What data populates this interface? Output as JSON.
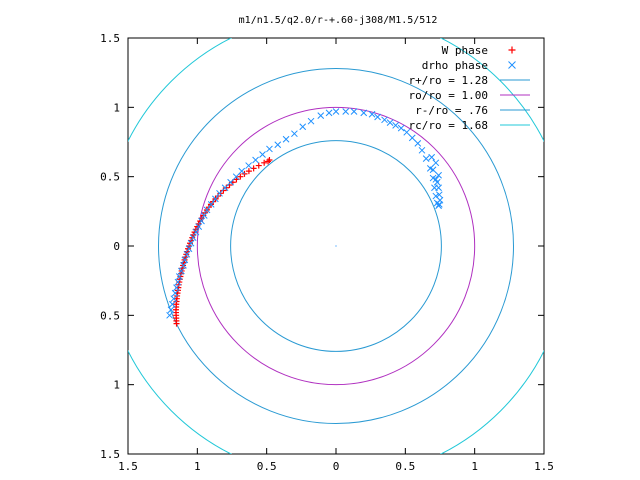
{
  "chart_data": {
    "type": "scatter",
    "title": "m1/n1.5/q2.0/r-+.60-j308/M1.5/512",
    "xlim": [
      -1.5,
      1.5
    ],
    "ylim": [
      -1.5,
      1.5
    ],
    "x_ticks": [
      -1.5,
      -1,
      -0.5,
      0,
      0.5,
      1,
      1.5
    ],
    "y_ticks": [
      -1.5,
      -1,
      -0.5,
      0,
      0.5,
      1,
      1.5
    ],
    "x_tick_labels": [
      "1.5",
      "1",
      "0.5",
      "0",
      "0.5",
      "1",
      "1.5"
    ],
    "y_tick_labels": [
      "1.5",
      "1",
      "0.5",
      "0",
      "0.5",
      "1",
      "1.5"
    ],
    "grid": false,
    "legend_position": "top-right",
    "legend": [
      {
        "label": "W phase",
        "kind": "marker",
        "marker": "plus",
        "color": "#ff0000"
      },
      {
        "label": "drho phase",
        "kind": "marker",
        "marker": "cross",
        "color": "#1e90ff"
      },
      {
        "label": "r+/ro = 1.28",
        "kind": "line",
        "color": "#2a9ad3"
      },
      {
        "label": "ro/ro = 1.00",
        "kind": "line",
        "color": "#b030c0"
      },
      {
        "label": "r-/ro = .76",
        "kind": "line",
        "color": "#2a9ad3"
      },
      {
        "label": "rc/ro = 1.68",
        "kind": "line",
        "color": "#22c8d8"
      }
    ],
    "circles": [
      {
        "name": "r+/ro = 1.28",
        "radius": 1.28,
        "color": "#2a9ad3"
      },
      {
        "name": "ro/ro = 1.00",
        "radius": 1.0,
        "color": "#b030c0"
      },
      {
        "name": "r-/ro = .76",
        "radius": 0.76,
        "color": "#2a9ad3"
      },
      {
        "name": "rc/ro = 1.68",
        "radius": 1.68,
        "color": "#22c8d8"
      }
    ],
    "series": [
      {
        "name": "W phase",
        "marker": "plus",
        "color": "#ff0000",
        "points": [
          [
            -1.15,
            -0.56
          ],
          [
            -1.151,
            -0.54
          ],
          [
            -1.152,
            -0.52
          ],
          [
            -1.153,
            -0.5
          ],
          [
            -1.154,
            -0.48
          ],
          [
            -1.154,
            -0.46
          ],
          [
            -1.153,
            -0.44
          ],
          [
            -1.152,
            -0.42
          ],
          [
            -1.15,
            -0.4
          ],
          [
            -1.148,
            -0.38
          ],
          [
            -1.146,
            -0.36
          ],
          [
            -1.143,
            -0.34
          ],
          [
            -1.14,
            -0.32
          ],
          [
            -1.137,
            -0.3
          ],
          [
            -1.134,
            -0.28
          ],
          [
            -1.13,
            -0.26
          ],
          [
            -1.126,
            -0.24
          ],
          [
            -1.122,
            -0.22
          ],
          [
            -1.118,
            -0.2
          ],
          [
            -1.113,
            -0.18
          ],
          [
            -1.108,
            -0.16
          ],
          [
            -1.103,
            -0.14
          ],
          [
            -1.098,
            -0.12
          ],
          [
            -1.092,
            -0.1
          ],
          [
            -1.086,
            -0.08
          ],
          [
            -1.08,
            -0.06
          ],
          [
            -1.074,
            -0.04
          ],
          [
            -1.067,
            -0.02
          ],
          [
            -1.06,
            0.0
          ],
          [
            -1.053,
            0.02
          ],
          [
            -1.045,
            0.04
          ],
          [
            -1.037,
            0.06
          ],
          [
            -1.029,
            0.08
          ],
          [
            -1.02,
            0.1
          ],
          [
            -1.011,
            0.12
          ],
          [
            -1.001,
            0.14
          ],
          [
            -0.991,
            0.16
          ],
          [
            -0.98,
            0.18
          ],
          [
            -0.969,
            0.2
          ],
          [
            -0.957,
            0.22
          ],
          [
            -0.944,
            0.24
          ],
          [
            -0.931,
            0.26
          ],
          [
            -0.917,
            0.28
          ],
          [
            -0.902,
            0.3
          ],
          [
            -0.886,
            0.32
          ],
          [
            -0.869,
            0.34
          ],
          [
            -0.851,
            0.36
          ],
          [
            -0.832,
            0.38
          ],
          [
            -0.812,
            0.4
          ],
          [
            -0.791,
            0.42
          ],
          [
            -0.768,
            0.44
          ],
          [
            -0.744,
            0.46
          ],
          [
            -0.718,
            0.48
          ],
          [
            -0.69,
            0.5
          ],
          [
            -0.66,
            0.52
          ],
          [
            -0.628,
            0.54
          ],
          [
            -0.594,
            0.56
          ],
          [
            -0.557,
            0.58
          ],
          [
            -0.518,
            0.6
          ],
          [
            -0.49,
            0.61
          ],
          [
            -0.48,
            0.62
          ]
        ]
      },
      {
        "name": "drho phase",
        "marker": "cross",
        "color": "#1e90ff",
        "points": [
          [
            -1.2,
            -0.5
          ],
          [
            -1.19,
            -0.46
          ],
          [
            -1.18,
            -0.42
          ],
          [
            -1.17,
            -0.38
          ],
          [
            -1.16,
            -0.34
          ],
          [
            -1.15,
            -0.3
          ],
          [
            -1.14,
            -0.26
          ],
          [
            -1.13,
            -0.22
          ],
          [
            -1.115,
            -0.18
          ],
          [
            -1.1,
            -0.14
          ],
          [
            -1.09,
            -0.1
          ],
          [
            -1.075,
            -0.06
          ],
          [
            -1.06,
            -0.02
          ],
          [
            -1.045,
            0.02
          ],
          [
            -1.03,
            0.06
          ],
          [
            -1.01,
            0.1
          ],
          [
            -0.99,
            0.14
          ],
          [
            -0.97,
            0.18
          ],
          [
            -0.95,
            0.22
          ],
          [
            -0.93,
            0.26
          ],
          [
            -0.9,
            0.3
          ],
          [
            -0.87,
            0.34
          ],
          [
            -0.84,
            0.38
          ],
          [
            -0.8,
            0.42
          ],
          [
            -0.76,
            0.46
          ],
          [
            -0.72,
            0.5
          ],
          [
            -0.68,
            0.54
          ],
          [
            -0.63,
            0.58
          ],
          [
            -0.58,
            0.62
          ],
          [
            -0.53,
            0.66
          ],
          [
            -0.48,
            0.7
          ],
          [
            -0.42,
            0.73
          ],
          [
            -0.36,
            0.77
          ],
          [
            -0.3,
            0.81
          ],
          [
            -0.24,
            0.86
          ],
          [
            -0.18,
            0.9
          ],
          [
            -0.11,
            0.94
          ],
          [
            -0.05,
            0.96
          ],
          [
            0.0,
            0.97
          ],
          [
            0.07,
            0.97
          ],
          [
            0.13,
            0.97
          ],
          [
            0.2,
            0.96
          ],
          [
            0.26,
            0.95
          ],
          [
            0.3,
            0.93
          ],
          [
            0.35,
            0.91
          ],
          [
            0.39,
            0.89
          ],
          [
            0.43,
            0.87
          ],
          [
            0.47,
            0.85
          ],
          [
            0.51,
            0.82
          ],
          [
            0.55,
            0.78
          ],
          [
            0.59,
            0.74
          ],
          [
            0.62,
            0.69
          ],
          [
            0.65,
            0.63
          ],
          [
            0.68,
            0.56
          ],
          [
            0.7,
            0.49
          ],
          [
            0.71,
            0.42
          ],
          [
            0.72,
            0.36
          ],
          [
            0.73,
            0.31
          ],
          [
            0.74,
            0.29
          ],
          [
            0.745,
            0.3
          ],
          [
            0.75,
            0.33
          ],
          [
            0.745,
            0.37
          ],
          [
            0.74,
            0.42
          ],
          [
            0.72,
            0.48
          ],
          [
            0.7,
            0.55
          ],
          [
            0.73,
            0.46
          ],
          [
            0.74,
            0.51
          ],
          [
            0.72,
            0.6
          ],
          [
            0.69,
            0.64
          ]
        ]
      }
    ]
  }
}
